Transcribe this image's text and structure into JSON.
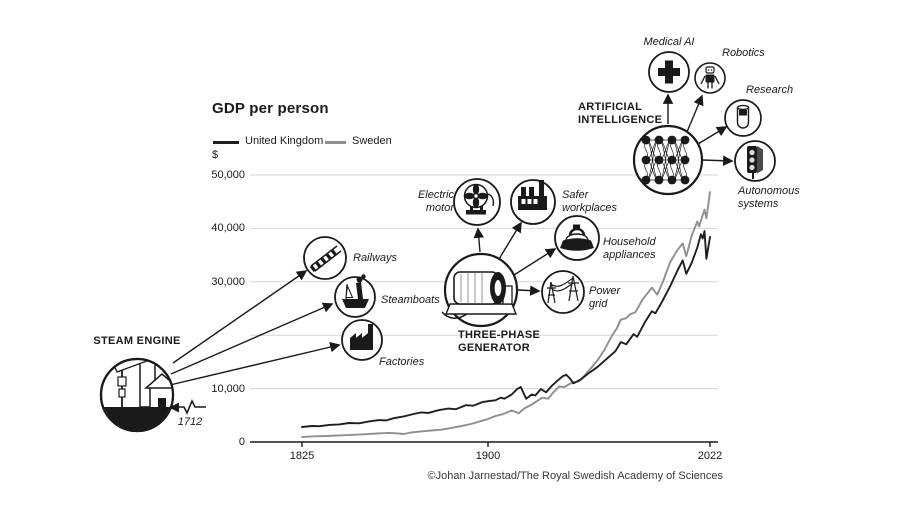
{
  "figure": {
    "title": "GDP per person",
    "currency_label": "$",
    "credit": "©Johan Jarnestad/The Royal Swedish Academy of Sciences"
  },
  "labels": {
    "legend_uk": "United Kingdom",
    "legend_sweden": "Sweden",
    "steam_engine": "STEAM ENGINE",
    "steam_year": "1712",
    "railways": "Railways",
    "steamboats": "Steamboats",
    "factories": "Factories",
    "three_phase": [
      "THREE-PHASE",
      "GENERATOR"
    ],
    "electric_motor": [
      "Electric",
      "motor"
    ],
    "safer_workplaces": [
      "Safer",
      "workplaces"
    ],
    "household_appliances": [
      "Household",
      "appliances"
    ],
    "power_grid": [
      "Power",
      "grid"
    ],
    "ai": [
      "ARTIFICIAL",
      "INTELLIGENCE"
    ],
    "medical_ai": "Medical AI",
    "robotics": "Robotics",
    "research": "Research",
    "autonomous_systems": [
      "Autonomous",
      "systems"
    ]
  },
  "chart_data": {
    "type": "line",
    "title": "GDP per person",
    "ylabel": "$",
    "xlim": [
      1825,
      2022
    ],
    "ylim": [
      0,
      52000
    ],
    "grid": "horizontal",
    "legend_position": "top-left",
    "x_ticks": [
      {
        "year": 1825,
        "label": "1825"
      },
      {
        "year": 1900,
        "label": "1900"
      },
      {
        "year": 2022,
        "label": "2022"
      }
    ],
    "y_ticks": [
      {
        "value": 0,
        "label": "0"
      },
      {
        "value": 10000,
        "label": "10,000"
      },
      {
        "value": 20000,
        "label": ""
      },
      {
        "value": 30000,
        "label": "30,000"
      },
      {
        "value": 40000,
        "label": "40,000"
      },
      {
        "value": 50000,
        "label": "50,000"
      }
    ],
    "series": [
      {
        "name": "Sweden",
        "color": "#8f8f8f",
        "points": [
          [
            1825,
            950
          ],
          [
            1830,
            1060
          ],
          [
            1835,
            1130
          ],
          [
            1840,
            1230
          ],
          [
            1845,
            1330
          ],
          [
            1850,
            1450
          ],
          [
            1855,
            1600
          ],
          [
            1860,
            1700
          ],
          [
            1863,
            1620
          ],
          [
            1866,
            1500
          ],
          [
            1869,
            1780
          ],
          [
            1873,
            1980
          ],
          [
            1877,
            2150
          ],
          [
            1881,
            2300
          ],
          [
            1885,
            2600
          ],
          [
            1889,
            2950
          ],
          [
            1893,
            3350
          ],
          [
            1897,
            3900
          ],
          [
            1900,
            4300
          ],
          [
            1904,
            4850
          ],
          [
            1908,
            5200
          ],
          [
            1913,
            5900
          ],
          [
            1917,
            5400
          ],
          [
            1920,
            6300
          ],
          [
            1924,
            7000
          ],
          [
            1928,
            7900
          ],
          [
            1930,
            8300
          ],
          [
            1933,
            8100
          ],
          [
            1936,
            9300
          ],
          [
            1939,
            10400
          ],
          [
            1942,
            10300
          ],
          [
            1945,
            10900
          ],
          [
            1948,
            11200
          ],
          [
            1950,
            11400
          ],
          [
            1953,
            12400
          ],
          [
            1956,
            13600
          ],
          [
            1960,
            15200
          ],
          [
            1964,
            17300
          ],
          [
            1968,
            19800
          ],
          [
            1971,
            21400
          ],
          [
            1973,
            22900
          ],
          [
            1976,
            23200
          ],
          [
            1978,
            23900
          ],
          [
            1981,
            24300
          ],
          [
            1985,
            26700
          ],
          [
            1990,
            28900
          ],
          [
            1993,
            27600
          ],
          [
            1996,
            29900
          ],
          [
            2000,
            33600
          ],
          [
            2004,
            35900
          ],
          [
            2007,
            37200
          ],
          [
            2009,
            34800
          ],
          [
            2012,
            38700
          ],
          [
            2015,
            41300
          ],
          [
            2016,
            40400
          ],
          [
            2019,
            43500
          ],
          [
            2020,
            41900
          ],
          [
            2022,
            46800
          ]
        ]
      },
      {
        "name": "United Kingdom",
        "color": "#1f1f1f",
        "points": [
          [
            1825,
            2800
          ],
          [
            1829,
            3000
          ],
          [
            1832,
            2950
          ],
          [
            1836,
            3200
          ],
          [
            1840,
            3300
          ],
          [
            1844,
            3550
          ],
          [
            1848,
            3500
          ],
          [
            1852,
            3850
          ],
          [
            1856,
            4100
          ],
          [
            1859,
            4050
          ],
          [
            1862,
            4450
          ],
          [
            1866,
            4800
          ],
          [
            1870,
            5250
          ],
          [
            1873,
            5550
          ],
          [
            1876,
            5450
          ],
          [
            1880,
            5950
          ],
          [
            1884,
            6250
          ],
          [
            1887,
            6150
          ],
          [
            1891,
            6900
          ],
          [
            1894,
            6800
          ],
          [
            1898,
            7500
          ],
          [
            1901,
            7700
          ],
          [
            1904,
            7800
          ],
          [
            1907,
            8300
          ],
          [
            1909,
            8100
          ],
          [
            1913,
            8900
          ],
          [
            1916,
            9900
          ],
          [
            1918,
            10300
          ],
          [
            1920,
            8800
          ],
          [
            1921,
            8100
          ],
          [
            1924,
            8900
          ],
          [
            1926,
            8700
          ],
          [
            1929,
            9900
          ],
          [
            1932,
            9300
          ],
          [
            1935,
            10500
          ],
          [
            1938,
            11400
          ],
          [
            1941,
            12300
          ],
          [
            1943,
            12600
          ],
          [
            1945,
            11900
          ],
          [
            1947,
            11000
          ],
          [
            1951,
            11700
          ],
          [
            1955,
            12800
          ],
          [
            1960,
            14000
          ],
          [
            1965,
            15500
          ],
          [
            1970,
            17000
          ],
          [
            1973,
            18700
          ],
          [
            1976,
            18300
          ],
          [
            1980,
            20200
          ],
          [
            1982,
            19700
          ],
          [
            1986,
            22300
          ],
          [
            1990,
            24500
          ],
          [
            1992,
            24100
          ],
          [
            1996,
            26500
          ],
          [
            2000,
            29100
          ],
          [
            2004,
            32000
          ],
          [
            2007,
            34000
          ],
          [
            2009,
            31500
          ],
          [
            2012,
            33600
          ],
          [
            2015,
            36400
          ],
          [
            2017,
            38900
          ],
          [
            2018,
            38100
          ],
          [
            2019,
            39500
          ],
          [
            2020,
            34300
          ],
          [
            2022,
            38400
          ]
        ]
      }
    ],
    "annotations": [
      {
        "label": "STEAM ENGINE",
        "year_note": "1712",
        "spinoffs": [
          "Railways",
          "Steamboats",
          "Factories"
        ]
      },
      {
        "label": "THREE-PHASE GENERATOR",
        "spinoffs": [
          "Electric motor",
          "Safer workplaces",
          "Household appliances",
          "Power grid"
        ]
      },
      {
        "label": "ARTIFICIAL INTELLIGENCE",
        "spinoffs": [
          "Medical AI",
          "Robotics",
          "Research",
          "Autonomous systems"
        ]
      }
    ]
  }
}
